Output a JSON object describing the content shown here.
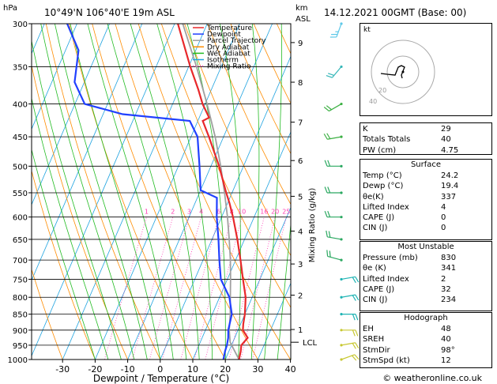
{
  "header": {
    "location": "10°49'N 106°40'E 19m ASL",
    "datetime": "14.12.2021 00GMT (Base: 00)",
    "hpa_label": "hPa",
    "km_label": "km",
    "asl_label": "ASL"
  },
  "legend": [
    {
      "label": "Temperature",
      "color": "#e8282b",
      "style": "solid"
    },
    {
      "label": "Dewpoint",
      "color": "#2040ff",
      "style": "solid"
    },
    {
      "label": "Parcel Trajectory",
      "color": "#a0a0a0",
      "style": "solid"
    },
    {
      "label": "Dry Adiabat",
      "color": "#ff8c00",
      "style": "solid"
    },
    {
      "label": "Wet Adiabat",
      "color": "#22bb22",
      "style": "solid"
    },
    {
      "label": "Isotherm",
      "color": "#1fa3e0",
      "style": "solid"
    },
    {
      "label": "Mixing Ratio",
      "color": "#ff3cb4",
      "style": "dotted"
    }
  ],
  "chart_data": {
    "type": "skew-t",
    "xlabel": "Dewpoint / Temperature (°C)",
    "ylabel_right": "Mixing Ratio (g/kg)",
    "x_ticks": [
      -30,
      -20,
      -10,
      0,
      10,
      20,
      30,
      40
    ],
    "pressure_levels": [
      300,
      350,
      400,
      450,
      500,
      550,
      600,
      650,
      700,
      750,
      800,
      850,
      900,
      950,
      1000
    ],
    "height_km_ticks": [
      {
        "label": "1",
        "p": 898
      },
      {
        "label": "2",
        "p": 794
      },
      {
        "label": "3",
        "p": 710
      },
      {
        "label": "4",
        "p": 631
      },
      {
        "label": "5",
        "p": 557
      },
      {
        "label": "6",
        "p": 490
      },
      {
        "label": "7",
        "p": 427
      },
      {
        "label": "8",
        "p": 370
      },
      {
        "label": "9",
        "p": 321
      }
    ],
    "lcl": {
      "label": "LCL",
      "p": 940
    },
    "mixing_ratio_labels": [
      "1",
      "2",
      "3",
      "4",
      "6",
      "8",
      "10",
      "16",
      "20",
      "25"
    ],
    "mixing_ratio_values": [
      1,
      2,
      3,
      4,
      6,
      8,
      10,
      16,
      20,
      25
    ],
    "temperature": [
      [
        1000,
        24.2
      ],
      [
        970,
        23.6
      ],
      [
        950,
        23.0
      ],
      [
        925,
        24.0
      ],
      [
        900,
        21.5
      ],
      [
        880,
        20.8
      ],
      [
        850,
        20.0
      ],
      [
        800,
        18.0
      ],
      [
        750,
        14.8
      ],
      [
        700,
        11.5
      ],
      [
        650,
        7.8
      ],
      [
        600,
        3.5
      ],
      [
        570,
        0.5
      ],
      [
        550,
        -1.8
      ],
      [
        500,
        -7.5
      ],
      [
        450,
        -14.5
      ],
      [
        425,
        -18.5
      ],
      [
        420,
        -17.0
      ],
      [
        400,
        -20.8
      ],
      [
        380,
        -24.0
      ],
      [
        350,
        -29.5
      ],
      [
        300,
        -39.0
      ]
    ],
    "dewpoint": [
      [
        1000,
        19.4
      ],
      [
        970,
        18.8
      ],
      [
        950,
        18.6
      ],
      [
        925,
        18.0
      ],
      [
        900,
        17.0
      ],
      [
        850,
        16.0
      ],
      [
        800,
        13.0
      ],
      [
        750,
        8.0
      ],
      [
        700,
        5.0
      ],
      [
        650,
        2.0
      ],
      [
        600,
        -1.5
      ],
      [
        560,
        -4.0
      ],
      [
        545,
        -10.0
      ],
      [
        500,
        -13.5
      ],
      [
        450,
        -18.0
      ],
      [
        425,
        -22.5
      ],
      [
        415,
        -44.0
      ],
      [
        400,
        -57.0
      ],
      [
        370,
        -63.0
      ],
      [
        330,
        -66.0
      ],
      [
        300,
        -73.0
      ]
    ],
    "parcel": [
      [
        1000,
        24.2
      ],
      [
        940,
        19.2
      ],
      [
        900,
        17.3
      ],
      [
        850,
        15.5
      ],
      [
        800,
        13.3
      ],
      [
        750,
        11.0
      ],
      [
        700,
        8.4
      ],
      [
        650,
        5.3
      ],
      [
        600,
        1.8
      ],
      [
        550,
        -2.3
      ],
      [
        500,
        -7.0
      ],
      [
        450,
        -12.6
      ],
      [
        400,
        -19.4
      ],
      [
        350,
        -27.6
      ],
      [
        300,
        -37.5
      ]
    ],
    "wind_barbs": [
      {
        "p": 300,
        "dir": 200,
        "spd": 15
      },
      {
        "p": 350,
        "dir": 220,
        "spd": 12
      },
      {
        "p": 400,
        "dir": 240,
        "spd": 10
      },
      {
        "p": 450,
        "dir": 260,
        "spd": 10
      },
      {
        "p": 500,
        "dir": 270,
        "spd": 10
      },
      {
        "p": 550,
        "dir": 270,
        "spd": 10
      },
      {
        "p": 600,
        "dir": 270,
        "spd": 10
      },
      {
        "p": 650,
        "dir": 280,
        "spd": 10
      },
      {
        "p": 700,
        "dir": 285,
        "spd": 10
      },
      {
        "p": 750,
        "dir": 80,
        "spd": 10
      },
      {
        "p": 800,
        "dir": 80,
        "spd": 10
      },
      {
        "p": 850,
        "dir": 90,
        "spd": 10
      },
      {
        "p": 900,
        "dir": 90,
        "spd": 10
      },
      {
        "p": 950,
        "dir": 80,
        "spd": 10
      },
      {
        "p": 1000,
        "dir": 70,
        "spd": 10
      }
    ],
    "hodograph": {
      "unit_label": "kt",
      "ring_labels": [
        "20",
        "40"
      ],
      "points": [
        [
          -1,
          8
        ],
        [
          -2,
          4
        ],
        [
          2,
          -6
        ],
        [
          -2,
          -8
        ],
        [
          -6,
          -6
        ],
        [
          -10,
          4
        ],
        [
          -20,
          3
        ],
        [
          -28,
          2
        ]
      ]
    }
  },
  "indices": [
    {
      "label": "K",
      "value": "29"
    },
    {
      "label": "Totals Totals",
      "value": "40"
    },
    {
      "label": "PW (cm)",
      "value": "4.75"
    }
  ],
  "surface": {
    "title": "Surface",
    "rows": [
      {
        "label": "Temp (°C)",
        "value": "24.2"
      },
      {
        "label": "Dewp (°C)",
        "value": "19.4"
      },
      {
        "label": "θe(K)",
        "value": "337"
      },
      {
        "label": "Lifted Index",
        "value": "4"
      },
      {
        "label": "CAPE (J)",
        "value": "0"
      },
      {
        "label": "CIN (J)",
        "value": "0"
      }
    ]
  },
  "most_unstable": {
    "title": "Most Unstable",
    "rows": [
      {
        "label": "Pressure (mb)",
        "value": "830"
      },
      {
        "label": "θe (K)",
        "value": "341"
      },
      {
        "label": "Lifted Index",
        "value": "2"
      },
      {
        "label": "CAPE (J)",
        "value": "32"
      },
      {
        "label": "CIN (J)",
        "value": "234"
      }
    ]
  },
  "hodograph_table": {
    "title": "Hodograph",
    "rows": [
      {
        "label": "EH",
        "value": "48"
      },
      {
        "label": "SREH",
        "value": "40"
      },
      {
        "label": "StmDir",
        "value": "98°"
      },
      {
        "label": "StmSpd (kt)",
        "value": "12"
      }
    ]
  },
  "footer": {
    "copyright": "© weatheronline.co.uk"
  }
}
